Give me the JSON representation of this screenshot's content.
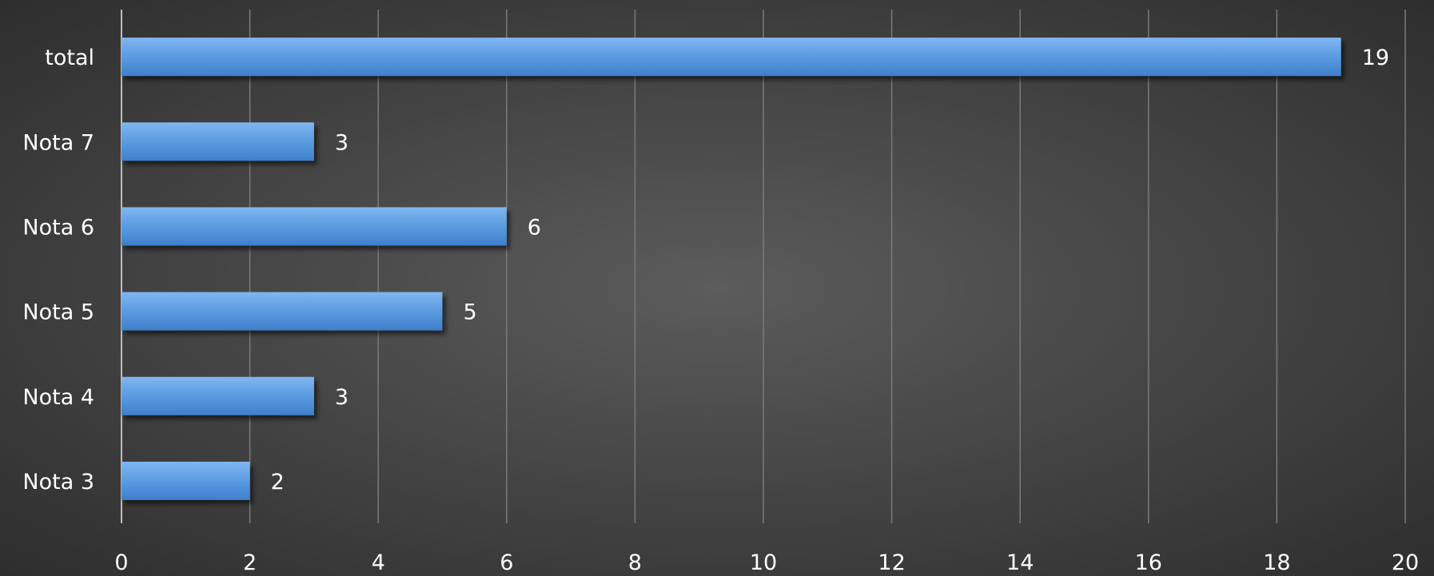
{
  "chart_data": {
    "type": "bar",
    "orientation": "horizontal",
    "categories": [
      "total",
      "Nota 7",
      "Nota 6",
      "Nota 5",
      "Nota 4",
      "Nota 3"
    ],
    "values": [
      19,
      3,
      6,
      5,
      3,
      2
    ],
    "xlim": [
      0,
      20
    ],
    "x_ticks": [
      0,
      2,
      4,
      6,
      8,
      10,
      12,
      14,
      16,
      18,
      20
    ],
    "title": "",
    "xlabel": "",
    "ylabel": "",
    "grid": true,
    "data_labels": true,
    "legend": "none",
    "colors": {
      "bar_top": "#7fb6ef",
      "bar_mid": "#5b9be0",
      "bar_bottom": "#3e7fcc",
      "grid": "#7a7a7a",
      "axis": "#bdbdbd",
      "text": "#ffffff"
    }
  }
}
